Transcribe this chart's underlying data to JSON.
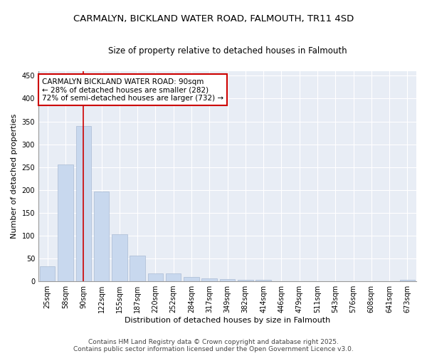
{
  "title_line1": "CARMALYN, BICKLAND WATER ROAD, FALMOUTH, TR11 4SD",
  "title_line2": "Size of property relative to detached houses in Falmouth",
  "xlabel": "Distribution of detached houses by size in Falmouth",
  "ylabel": "Number of detached properties",
  "categories": [
    "25sqm",
    "58sqm",
    "90sqm",
    "122sqm",
    "155sqm",
    "187sqm",
    "220sqm",
    "252sqm",
    "284sqm",
    "317sqm",
    "349sqm",
    "382sqm",
    "414sqm",
    "446sqm",
    "479sqm",
    "511sqm",
    "543sqm",
    "576sqm",
    "608sqm",
    "641sqm",
    "673sqm"
  ],
  "values": [
    33,
    256,
    340,
    196,
    103,
    57,
    18,
    18,
    9,
    7,
    5,
    3,
    3,
    0,
    0,
    0,
    0,
    0,
    0,
    0,
    3
  ],
  "bar_color": "#c8d8ee",
  "bar_edgecolor": "#aabbd4",
  "vline_x": 2,
  "vline_color": "#cc0000",
  "annotation_text": "CARMALYN BICKLAND WATER ROAD: 90sqm\n← 28% of detached houses are smaller (282)\n72% of semi-detached houses are larger (732) →",
  "annotation_box_facecolor": "#ffffff",
  "annotation_box_edgecolor": "#cc0000",
  "ylim": [
    0,
    460
  ],
  "yticks": [
    0,
    50,
    100,
    150,
    200,
    250,
    300,
    350,
    400,
    450
  ],
  "bg_color": "#ffffff",
  "plot_bg_color": "#e8edf5",
  "title_fontsize": 9.5,
  "subtitle_fontsize": 8.5,
  "axis_label_fontsize": 8,
  "tick_fontsize": 7,
  "annotation_fontsize": 7.5,
  "footer_fontsize": 6.5,
  "footer_line1": "Contains HM Land Registry data © Crown copyright and database right 2025.",
  "footer_line2": "Contains public sector information licensed under the Open Government Licence v3.0."
}
